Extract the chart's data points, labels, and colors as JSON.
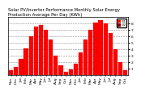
{
  "title": "Solar PV/Inverter Performance Monthly Solar Energy\nProduction Average Per Day (KWh)",
  "bar_color": "#ff0000",
  "background_color": "#ffffff",
  "grid_color": "#888888",
  "values": [
    0.8,
    1.2,
    2.5,
    4.2,
    6.0,
    7.5,
    7.8,
    7.0,
    5.5,
    3.0,
    1.5,
    0.5,
    0.9,
    1.8,
    3.5,
    5.5,
    7.0,
    8.2,
    8.5,
    8.0,
    6.5,
    4.0,
    2.0,
    0.7
  ],
  "ylim": [
    0,
    9
  ],
  "ytick_values": [
    1,
    2,
    3,
    4,
    5,
    6,
    7,
    8
  ],
  "categories": [
    "Nov",
    "Dec",
    "Jan",
    "Feb",
    "Mar",
    "Apr",
    "May",
    "Jun",
    "Jul",
    "Aug",
    "Sep",
    "Oct",
    "Nov",
    "Dec",
    "Jan",
    "Feb",
    "Mar",
    "Apr",
    "May",
    "Jun",
    "Jul",
    "Aug",
    "Sep",
    "Oct"
  ],
  "title_fontsize": 3.8,
  "tick_fontsize": 3.2,
  "bar_width": 0.85,
  "legend_items": [
    {
      "label": "E1",
      "color": "#ff0000"
    },
    {
      "label": "E2",
      "color": "#880000"
    }
  ]
}
